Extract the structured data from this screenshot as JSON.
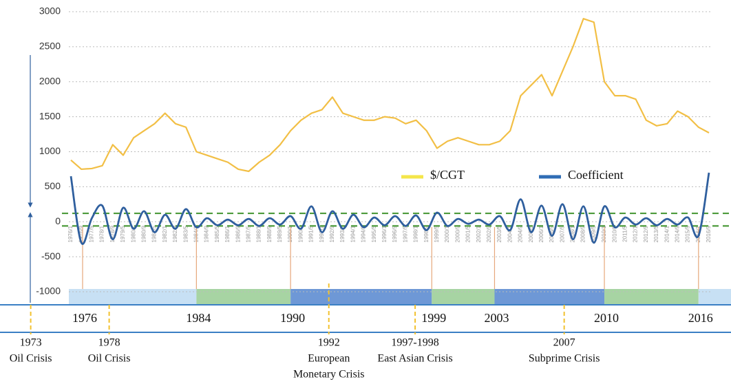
{
  "chart_data": {
    "type": "line",
    "categories": [
      "1976/1",
      "1976/9",
      "1977/5",
      "1978/1",
      "1978/9",
      "1979/5",
      "1980/1",
      "1980/9",
      "1981/5",
      "1982/1",
      "1982/9",
      "1983/5",
      "1984/1",
      "1984/9",
      "1985/5",
      "1986/1",
      "1986/9",
      "1987/5",
      "1988/1",
      "1988/9",
      "1989/5",
      "1990/1",
      "1990/9",
      "1991/5",
      "1992/1",
      "1992/9",
      "1993/5",
      "1994/1",
      "1994/9",
      "1995/5",
      "1996/1",
      "1996/9",
      "1997/5",
      "1998/1",
      "1998/9",
      "1999/5",
      "2000/1",
      "2000/9",
      "2001/5",
      "2002/1",
      "2002/9",
      "2003/5",
      "2004/1",
      "2004/9",
      "2005/5",
      "2006/1",
      "2006/9",
      "2007/5",
      "2008/1",
      "2008/9",
      "2009/5",
      "2010/1",
      "2010/9",
      "2011/5",
      "2012/1",
      "2012/9",
      "2013/5",
      "2014/1",
      "2014/9",
      "2015/5",
      "2016/1",
      "2016/9"
    ],
    "series": [
      {
        "name": "$/CGT",
        "color": "#f2bf45",
        "values": [
          880,
          750,
          760,
          800,
          1100,
          950,
          1200,
          1300,
          1400,
          1550,
          1400,
          1350,
          1000,
          950,
          900,
          850,
          750,
          720,
          850,
          950,
          1100,
          1300,
          1450,
          1550,
          1600,
          1780,
          1550,
          1500,
          1450,
          1450,
          1500,
          1480,
          1400,
          1450,
          1300,
          1050,
          1150,
          1200,
          1150,
          1100,
          1100,
          1150,
          1300,
          1800,
          1950,
          2100,
          1800,
          2150,
          2500,
          2900,
          2850,
          2000,
          1800,
          1800,
          1750,
          1450,
          1370,
          1400,
          1580,
          1500,
          1350,
          1270
        ]
      },
      {
        "name": "Coefficient",
        "color": "#2f5f9e",
        "smooth": true,
        "values": [
          650,
          -300,
          50,
          230,
          -250,
          200,
          -100,
          150,
          -150,
          100,
          -100,
          180,
          -80,
          50,
          -50,
          30,
          -50,
          40,
          -60,
          50,
          -40,
          80,
          -100,
          220,
          -150,
          150,
          -100,
          100,
          -80,
          60,
          -50,
          80,
          -60,
          90,
          -120,
          130,
          -60,
          40,
          -30,
          30,
          -40,
          80,
          -120,
          320,
          -150,
          230,
          -200,
          250,
          -250,
          220,
          -300,
          220,
          -80,
          60,
          -40,
          50,
          -50,
          40,
          -40,
          60,
          -200,
          700
        ]
      }
    ],
    "legend_swatch_colors": [
      "#f4e64a",
      "#2f6db5"
    ],
    "ylim": [
      -1000,
      3000
    ],
    "yticks": [
      -1000,
      -500,
      0,
      500,
      1000,
      1500,
      2000,
      2500,
      3000
    ],
    "grid": true,
    "reference_lines": [
      120,
      -60
    ],
    "reference_color": "#4c9a3a",
    "timeline": {
      "periods": [
        "1976",
        "1984",
        "1990",
        "1999",
        "2003",
        "2010",
        "2016"
      ],
      "phase_colors": [
        "#c7e0f4",
        "#a7d4a3",
        "#6e98d6",
        "#a7d4a3",
        "#6e98d6",
        "#a7d4a3",
        "#c7e0f4"
      ],
      "crises": [
        {
          "year": "1973",
          "event": [
            "Oil Crisis"
          ]
        },
        {
          "year": "1978",
          "event": [
            "Oil Crisis"
          ]
        },
        {
          "year": "1992",
          "event": [
            "European",
            "Monetary Crisis"
          ]
        },
        {
          "year": "1997-1998",
          "event": [
            "East Asian Crisis"
          ]
        },
        {
          "year": "2007",
          "event": [
            "Subprime Crisis"
          ]
        }
      ]
    }
  }
}
